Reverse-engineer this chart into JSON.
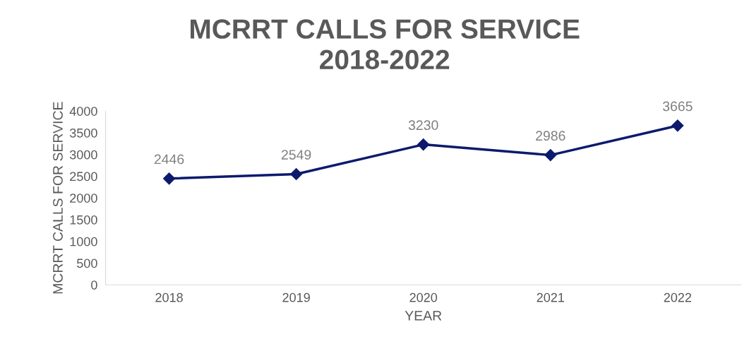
{
  "chart_data": {
    "type": "line",
    "title": "MCRRT CALLS FOR SERVICE\n2018-2022",
    "xlabel": "YEAR",
    "ylabel": "MCRRT CALLS FOR SERVICE",
    "categories": [
      "2018",
      "2019",
      "2020",
      "2021",
      "2022"
    ],
    "series": [
      {
        "color": "#0c1a6e",
        "values": [
          2446,
          2549,
          3230,
          2986,
          3665
        ]
      }
    ],
    "ylim": [
      0,
      4000
    ],
    "yticks": [
      0,
      500,
      1000,
      1500,
      2000,
      2500,
      3000,
      3500,
      4000
    ],
    "data_labels": true,
    "marker": "diamond",
    "line_style": "solid",
    "grid": false,
    "legend": false
  }
}
